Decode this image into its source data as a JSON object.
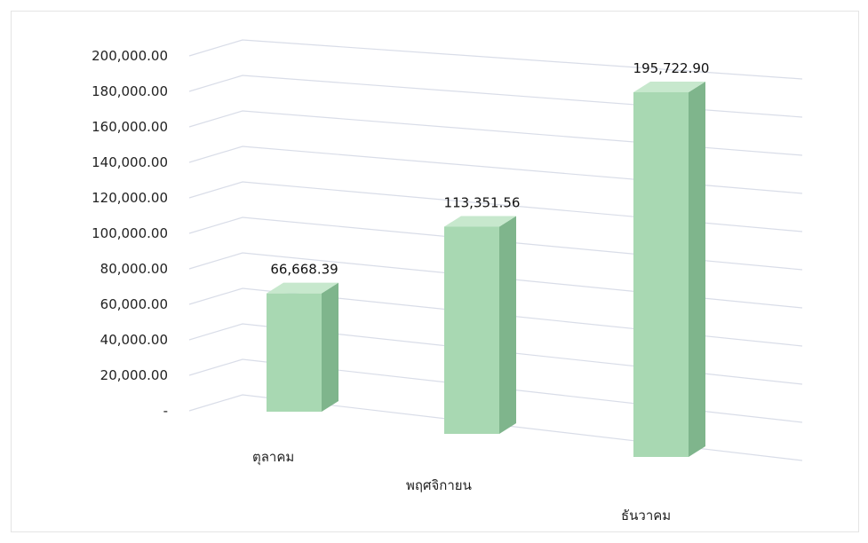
{
  "chart_data": {
    "type": "bar",
    "title": "",
    "xlabel": "",
    "ylabel": "",
    "categories": [
      "ตุลาคม",
      "พฤศจิกายน",
      "ธันวาคม"
    ],
    "values": [
      66668.39,
      113351.56,
      195722.9
    ],
    "data_labels": [
      "66,668.39",
      "113,351.56",
      "195,722.90"
    ],
    "ylim": [
      0,
      200000
    ],
    "y_tick_labels": [
      "-",
      "20,000.00",
      "40,000.00",
      "60,000.00",
      "80,000.00",
      "100,000.00",
      "120,000.00",
      "140,000.00",
      "160,000.00",
      "180,000.00",
      "200,000.00"
    ],
    "grid": true,
    "legend": "none",
    "style": "3d-column",
    "colors": {
      "bar_front": "#a8d8b2",
      "bar_side": "#7fb58c",
      "bar_top": "#c7e8cd",
      "grid": "#d9dde8"
    }
  }
}
